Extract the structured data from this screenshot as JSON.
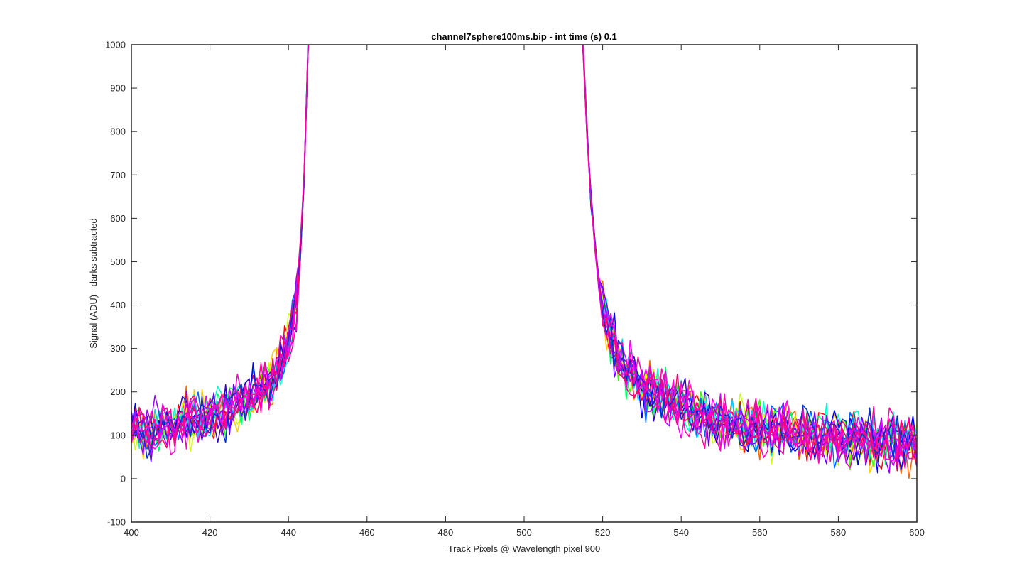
{
  "chart_data": {
    "type": "line",
    "title": "channel7sphere100ms.bip - int time (s) 0.1",
    "xlabel": "Track Pixels @ Wavelength pixel 900",
    "ylabel": "Signal (ADU) - darks subtracted",
    "xlim": [
      400,
      600
    ],
    "ylim": [
      -100,
      1000
    ],
    "xticks": [
      400,
      420,
      440,
      460,
      480,
      500,
      520,
      540,
      560,
      580,
      600
    ],
    "yticks": [
      -100,
      0,
      100,
      200,
      300,
      400,
      500,
      600,
      700,
      800,
      900,
      1000
    ],
    "grid": false,
    "legend": "none",
    "series_count": 20,
    "gap": [
      445,
      515
    ],
    "left_segment": {
      "x": [
        400,
        405,
        410,
        415,
        420,
        425,
        430,
        435,
        438,
        440,
        442,
        443,
        444,
        445
      ],
      "y": [
        110,
        115,
        125,
        135,
        145,
        160,
        185,
        215,
        260,
        310,
        400,
        520,
        700,
        1000
      ]
    },
    "right_segment": {
      "x": [
        515,
        516,
        517,
        518,
        519,
        520,
        522,
        525,
        530,
        540,
        550,
        560,
        570,
        580,
        590,
        600
      ],
      "y": [
        1000,
        800,
        650,
        540,
        460,
        400,
        330,
        270,
        210,
        160,
        130,
        115,
        105,
        95,
        90,
        85
      ]
    },
    "noise_amplitude": 45,
    "colors": [
      "#ff0000",
      "#ff6600",
      "#ffcc00",
      "#ccff00",
      "#33ff00",
      "#00ff66",
      "#00ffcc",
      "#00ccff",
      "#0066ff",
      "#0000ff",
      "#3300cc",
      "#6600ff",
      "#9900ff",
      "#cc00ff",
      "#ff00ff",
      "#ff00cc",
      "#ff0099",
      "#ff0066",
      "#0033cc",
      "#ff00aa"
    ]
  }
}
